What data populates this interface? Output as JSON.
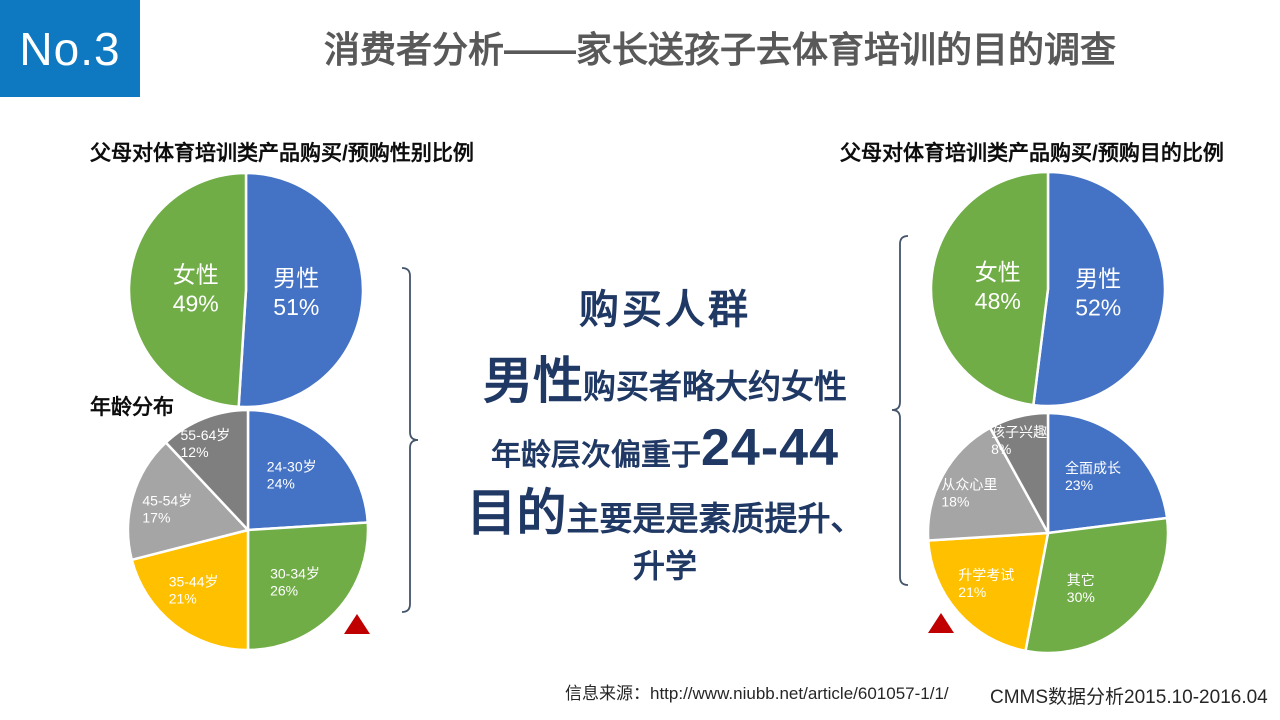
{
  "slide": {
    "badge": "No.3",
    "title": "消费者分析——家长送孩子去体育培训的目的调查",
    "footer": {
      "source": "信息来源：http://www.niubb.net/article/601057-1/1/",
      "analysis": "CMMS数据分析2015.10-2016.04"
    }
  },
  "colors": {
    "badge_bg": "#0E79C1",
    "title": "#595959",
    "navy": "#1F3864",
    "bracket": "#44546A",
    "marker_red": "#C00000",
    "footer": "#262626",
    "pie_blue": "#4472C4",
    "pie_green": "#70AD47",
    "pie_yellow": "#FFC000",
    "pie_gray_light": "#A5A5A5",
    "pie_gray_dark": "#7F7F7F",
    "pie_label": "#FFFFFF"
  },
  "center_text": {
    "heading": "购买人群",
    "line2_emphasis": "男性",
    "line2_rest": "购买者略大约女性",
    "line3_lead": "年龄层次偏重于",
    "line3_emphasis": "24-44",
    "line4_emphasis": "目的",
    "line4_rest": "主要是是素质提升、",
    "line5": "升学"
  },
  "chart_data": [
    {
      "id": "gender_left",
      "type": "pie",
      "title": "父母对体育培训类产品购买/预购性别比例",
      "start_angle_deg": 0,
      "direction": "clockwise",
      "slices": [
        {
          "label": "男性",
          "value": 51,
          "unit": "%",
          "color": "#4472C4"
        },
        {
          "label": "女性",
          "value": 49,
          "unit": "%",
          "color": "#70AD47"
        }
      ]
    },
    {
      "id": "age",
      "type": "pie",
      "title": "年龄分布",
      "start_angle_deg": 0,
      "direction": "clockwise",
      "slices": [
        {
          "label": "24-30岁",
          "value": 24,
          "unit": "%",
          "color": "#4472C4"
        },
        {
          "label": "30-34岁",
          "value": 26,
          "unit": "%",
          "color": "#70AD47"
        },
        {
          "label": "35-44岁",
          "value": 21,
          "unit": "%",
          "color": "#FFC000"
        },
        {
          "label": "45-54岁",
          "value": 17,
          "unit": "%",
          "color": "#A5A5A5"
        },
        {
          "label": "55-64岁",
          "value": 12,
          "unit": "%",
          "color": "#7F7F7F"
        }
      ]
    },
    {
      "id": "gender_right",
      "type": "pie",
      "title": "父母对体育培训类产品购买/预购目的比例",
      "start_angle_deg": 0,
      "direction": "clockwise",
      "slices": [
        {
          "label": "男性",
          "value": 52,
          "unit": "%",
          "color": "#4472C4"
        },
        {
          "label": "女性",
          "value": 48,
          "unit": "%",
          "color": "#70AD47"
        }
      ]
    },
    {
      "id": "purpose",
      "type": "pie",
      "start_angle_deg": 0,
      "direction": "clockwise",
      "slices": [
        {
          "label": "全面成长",
          "value": 23,
          "unit": "%",
          "color": "#4472C4"
        },
        {
          "label": "其它",
          "value": 30,
          "unit": "%",
          "color": "#70AD47"
        },
        {
          "label": "升学考试",
          "value": 21,
          "unit": "%",
          "color": "#FFC000"
        },
        {
          "label": "从众心里",
          "value": 18,
          "unit": "%",
          "color": "#A5A5A5"
        },
        {
          "label": "孩子兴趣",
          "value": 8,
          "unit": "%",
          "color": "#7F7F7F"
        }
      ]
    }
  ]
}
